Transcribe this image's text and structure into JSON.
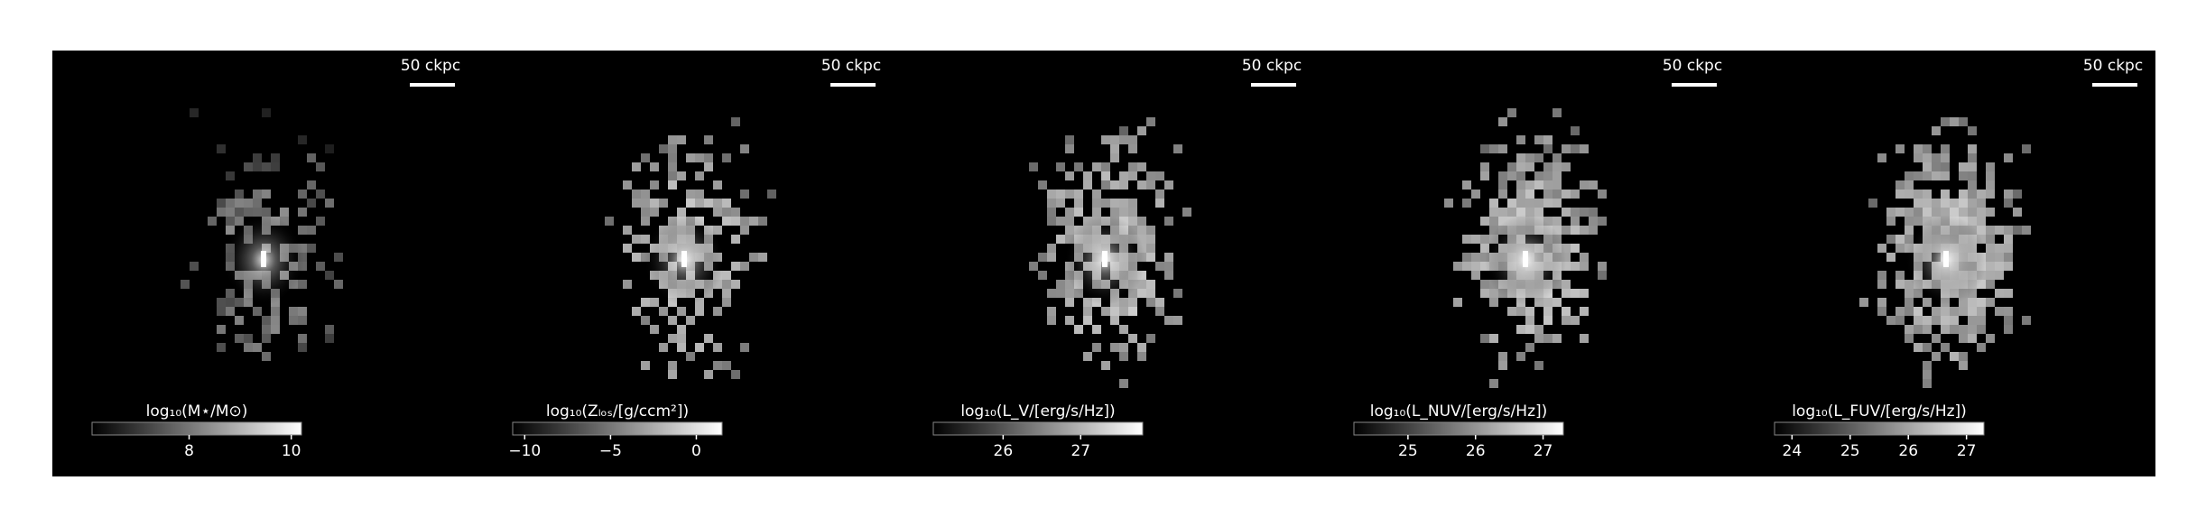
{
  "chart_data": [
    {
      "type": "image",
      "colorbar_label": "log₁₀(M⋆/M⊙)",
      "clim": [
        6.1,
        10.2
      ],
      "cticks": [
        8,
        10
      ],
      "scale_bar": "50 ckpc",
      "cmap": [
        "#000000",
        "#ffffff"
      ]
    },
    {
      "type": "image",
      "colorbar_label": "log₁₀(Zₗₒₛ/[g/ccm²])",
      "clim": [
        -10.7,
        1.5
      ],
      "cticks": [
        {
          "value": -10,
          "label": "−10"
        },
        {
          "value": -5,
          "label": "−5"
        },
        0
      ],
      "scale_bar": "50 ckpc",
      "cmap": [
        "#000000",
        "#ffffff"
      ]
    },
    {
      "type": "image",
      "colorbar_label": "log₁₀(L_V/[erg/s/Hz])",
      "clim": [
        25.1,
        27.8
      ],
      "cticks": [
        26,
        27
      ],
      "scale_bar": "50 ckpc",
      "cmap": [
        "#000000",
        "#ffffff"
      ]
    },
    {
      "type": "image",
      "colorbar_label": "log₁₀(L_NUV/[erg/s/Hz])",
      "clim": [
        24.2,
        27.3
      ],
      "cticks": [
        25,
        26,
        27
      ],
      "scale_bar": "50 ckpc",
      "cmap": [
        "#000000",
        "#ffffff"
      ]
    },
    {
      "type": "image",
      "colorbar_label": "log₁₀(L_FUV/[erg/s/Hz])",
      "clim": [
        23.7,
        27.3
      ],
      "cticks": [
        24,
        25,
        26,
        27
      ],
      "scale_bar": "50 ckpc",
      "cmap": [
        "#000000",
        "#ffffff"
      ]
    }
  ]
}
